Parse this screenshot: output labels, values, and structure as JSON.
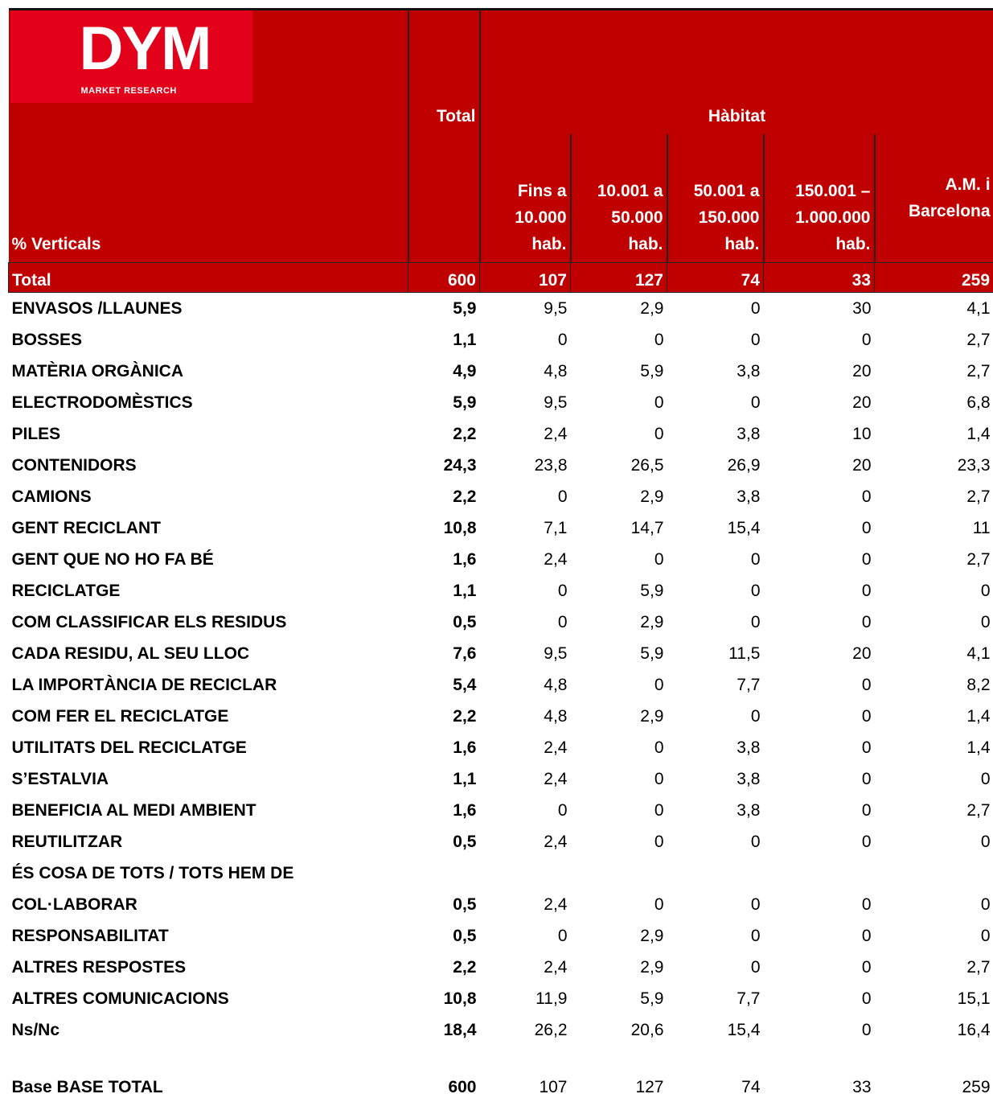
{
  "logo": {
    "name": "DYM",
    "tagline": "MARKET RESEARCH"
  },
  "header": {
    "total": "Total",
    "group": "Hàbitat",
    "row_label": "% Verticals",
    "columns": [
      [
        "Fins a",
        "10.000",
        "hab."
      ],
      [
        "10.001 a",
        "50.000",
        "hab."
      ],
      [
        "50.001 a",
        "150.000",
        "hab."
      ],
      [
        "150.001 –",
        "1.000.000",
        "hab."
      ],
      [
        "A.M. i",
        "Barcelona"
      ]
    ]
  },
  "total_row": {
    "label": "Total",
    "values": [
      "600",
      "107",
      "127",
      "74",
      "33",
      "259"
    ]
  },
  "rows": [
    {
      "label": [
        "ENVASOS /LLAUNES"
      ],
      "values": [
        "5,9",
        "9,5",
        "2,9",
        "0",
        "30",
        "4,1"
      ]
    },
    {
      "label": [
        "BOSSES"
      ],
      "values": [
        "1,1",
        "0",
        "0",
        "0",
        "0",
        "2,7"
      ]
    },
    {
      "label": [
        "MATÈRIA ORGÀNICA"
      ],
      "values": [
        "4,9",
        "4,8",
        "5,9",
        "3,8",
        "20",
        "2,7"
      ]
    },
    {
      "label": [
        "ELECTRODOMÈSTICS"
      ],
      "values": [
        "5,9",
        "9,5",
        "0",
        "0",
        "20",
        "6,8"
      ]
    },
    {
      "label": [
        "PILES"
      ],
      "values": [
        "2,2",
        "2,4",
        "0",
        "3,8",
        "10",
        "1,4"
      ]
    },
    {
      "label": [
        "CONTENIDORS"
      ],
      "values": [
        "24,3",
        "23,8",
        "26,5",
        "26,9",
        "20",
        "23,3"
      ]
    },
    {
      "label": [
        "CAMIONS"
      ],
      "values": [
        "2,2",
        "0",
        "2,9",
        "3,8",
        "0",
        "2,7"
      ]
    },
    {
      "label": [
        "GENT RECICLANT"
      ],
      "values": [
        "10,8",
        "7,1",
        "14,7",
        "15,4",
        "0",
        "11"
      ]
    },
    {
      "label": [
        "GENT QUE NO HO FA BÉ"
      ],
      "values": [
        "1,6",
        "2,4",
        "0",
        "0",
        "0",
        "2,7"
      ]
    },
    {
      "label": [
        "RECICLATGE"
      ],
      "values": [
        "1,1",
        "0",
        "5,9",
        "0",
        "0",
        "0"
      ]
    },
    {
      "label": [
        "COM CLASSIFICAR ELS RESIDUS"
      ],
      "values": [
        "0,5",
        "0",
        "2,9",
        "0",
        "0",
        "0"
      ]
    },
    {
      "label": [
        "CADA RESIDU, AL SEU LLOC"
      ],
      "values": [
        "7,6",
        "9,5",
        "5,9",
        "11,5",
        "20",
        "4,1"
      ]
    },
    {
      "label": [
        "LA IMPORTÀNCIA DE RECICLAR"
      ],
      "values": [
        "5,4",
        "4,8",
        "0",
        "7,7",
        "0",
        "8,2"
      ]
    },
    {
      "label": [
        "COM FER EL RECICLATGE"
      ],
      "values": [
        "2,2",
        "4,8",
        "2,9",
        "0",
        "0",
        "1,4"
      ]
    },
    {
      "label": [
        "UTILITATS DEL RECICLATGE"
      ],
      "values": [
        "1,6",
        "2,4",
        "0",
        "3,8",
        "0",
        "1,4"
      ]
    },
    {
      "label": [
        "S’ESTALVIA"
      ],
      "values": [
        "1,1",
        "2,4",
        "0",
        "3,8",
        "0",
        "0"
      ]
    },
    {
      "label": [
        "BENEFICIA AL MEDI AMBIENT"
      ],
      "values": [
        "1,6",
        "0",
        "0",
        "3,8",
        "0",
        "2,7"
      ]
    },
    {
      "label": [
        "REUTILITZAR"
      ],
      "values": [
        "0,5",
        "2,4",
        "0",
        "0",
        "0",
        "0"
      ]
    },
    {
      "label": [
        "ÉS COSA DE TOTS / TOTS HEM DE",
        "COL·LABORAR"
      ],
      "values": [
        "0,5",
        "2,4",
        "0",
        "0",
        "0",
        "0"
      ]
    },
    {
      "label": [
        "RESPONSABILITAT"
      ],
      "values": [
        "0,5",
        "0",
        "2,9",
        "0",
        "0",
        "0"
      ]
    },
    {
      "label": [
        "ALTRES RESPOSTES"
      ],
      "values": [
        "2,2",
        "2,4",
        "2,9",
        "0",
        "0",
        "2,7"
      ]
    },
    {
      "label": [
        "ALTRES COMUNICACIONS"
      ],
      "values": [
        "10,8",
        "11,9",
        "5,9",
        "7,7",
        "0",
        "15,1"
      ]
    },
    {
      "label": [
        "Ns/Nc"
      ],
      "values": [
        "18,4",
        "26,2",
        "20,6",
        "15,4",
        "0",
        "16,4"
      ]
    }
  ],
  "base_row": {
    "label": "Base BASE TOTAL",
    "values": [
      "600",
      "107",
      "127",
      "74",
      "33",
      "259"
    ]
  }
}
